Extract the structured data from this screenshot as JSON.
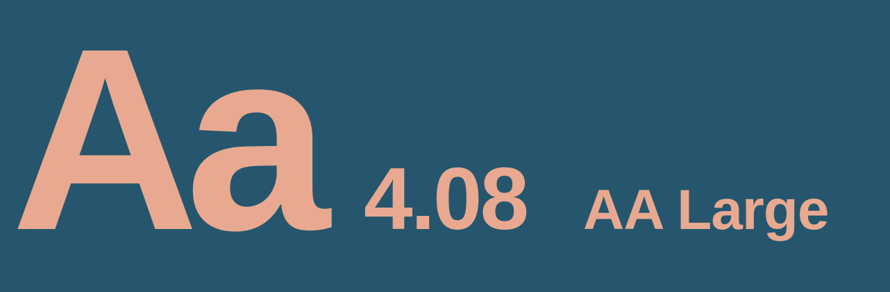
{
  "sample": {
    "text": "Aa"
  },
  "contrast": {
    "ratio": "4.08",
    "rating": "AA Large"
  },
  "colors": {
    "background": "#25566e",
    "foreground": "#e8a990"
  }
}
